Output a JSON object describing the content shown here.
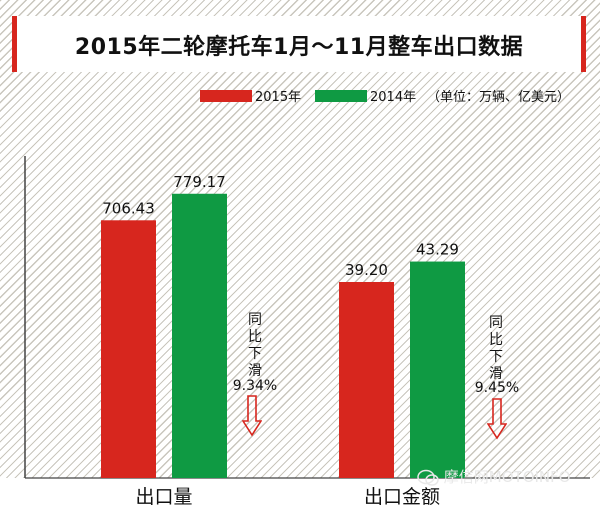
{
  "title": "2015年二轮摩托车1月～11月整车出口数据",
  "unit_label": "（单位：万辆、亿美元）",
  "notes": [
    {
      "text": "同比下滑",
      "value": "9.34%"
    },
    {
      "text": "同比下滑",
      "value": "9.45%"
    }
  ],
  "watermark": "摩信网MOTOINFO",
  "colors": {
    "series_2015": "#d7261e",
    "series_2014": "#0f9a43",
    "arrow": "#d7261e"
  },
  "chart_data": {
    "type": "bar",
    "categories": [
      "出口量",
      "出口金额"
    ],
    "series": [
      {
        "name": "2015年",
        "values": [
          706.43,
          39.2
        ],
        "labels": [
          "706.43",
          "39.20"
        ]
      },
      {
        "name": "2014年",
        "values": [
          779.17,
          43.29
        ],
        "labels": [
          "779.17",
          "43.29"
        ]
      }
    ],
    "legend_position": "top",
    "grid": false
  }
}
